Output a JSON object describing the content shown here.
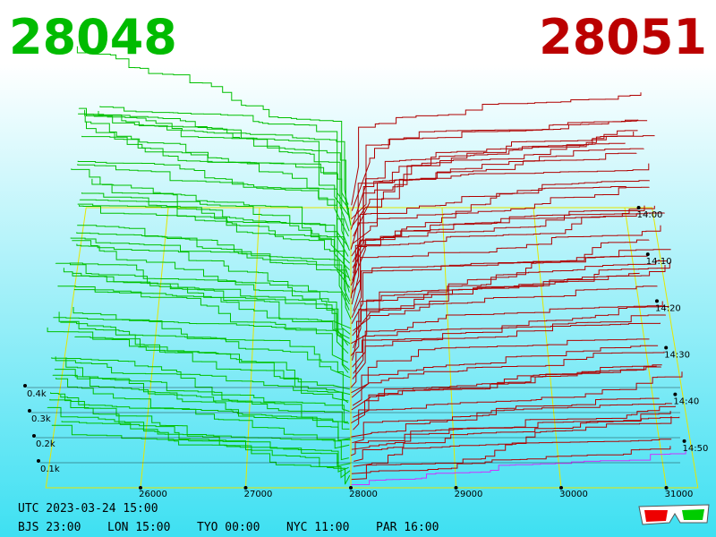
{
  "header": {
    "bid": "28048",
    "ask": "28051"
  },
  "axes": {
    "price_ticks": [
      26000,
      27000,
      28000,
      29000,
      30000,
      31000
    ],
    "depth_ticks": [
      {
        "value": 100,
        "label": "0.1k"
      },
      {
        "value": 200,
        "label": "0.2k"
      },
      {
        "value": 300,
        "label": "0.3k"
      },
      {
        "value": 400,
        "label": "0.4k"
      }
    ],
    "time_ticks": [
      "14:00",
      "14:10",
      "14:20",
      "14:30",
      "14:40",
      "14:50"
    ]
  },
  "footer": {
    "utc": "UTC 2023-03-24 15:00",
    "cities": [
      "BJS 23:00",
      "LON 15:00",
      "TYO 00:00",
      "NYC 11:00",
      "PAR 16:00"
    ]
  }
}
